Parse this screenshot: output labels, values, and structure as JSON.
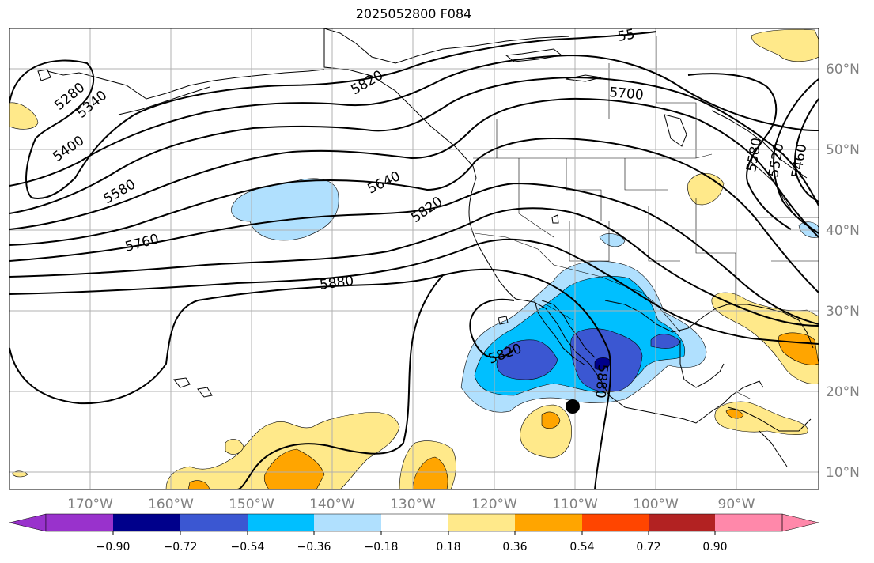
{
  "title": "2025052800 F084",
  "map": {
    "lon_labels": [
      "170°W",
      "160°W",
      "150°W",
      "140°W",
      "130°W",
      "120°W",
      "110°W",
      "100°W",
      "90°W"
    ],
    "lat_labels": [
      "60°N",
      "50°N",
      "40°N",
      "30°N",
      "20°N",
      "10°N"
    ],
    "contour_labels": [
      "5280",
      "5340",
      "5400",
      "5580",
      "5760",
      "5880",
      "5640",
      "5820",
      "5700",
      "5580",
      "5520",
      "5460",
      "5820",
      "5880",
      "5820",
      "55"
    ],
    "label_color": "#808080"
  },
  "colorbar": {
    "ticks": [
      "−0.90",
      "−0.72",
      "−0.54",
      "−0.36",
      "−0.18",
      "0.18",
      "0.36",
      "0.54",
      "0.72",
      "0.90"
    ],
    "colors": [
      "#9932cc",
      "#00008b",
      "#3b57d2",
      "#00bfff",
      "#b0e0fe",
      "#ffffff",
      "#ffe98a",
      "#ffa500",
      "#ff4500",
      "#b22222",
      "#ff88aa"
    ]
  }
}
